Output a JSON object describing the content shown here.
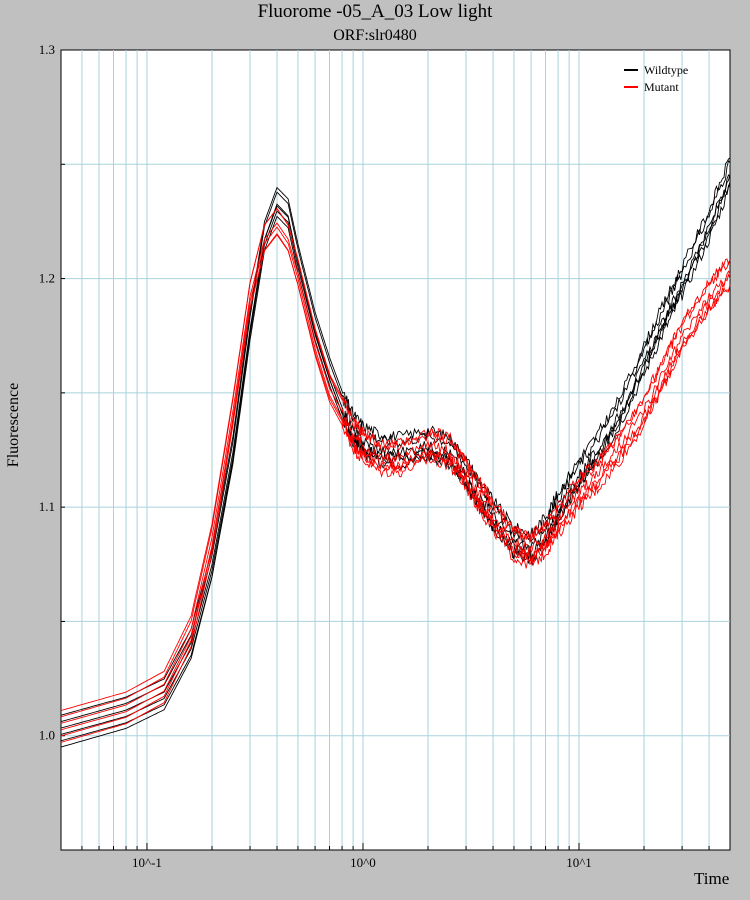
{
  "chart_data": {
    "type": "line",
    "title": "Fluorome -05_A_03 Low light",
    "subtitle": "ORF:slr0480",
    "xlabel": "Time",
    "ylabel": "Fluorescence",
    "x_scale": "log",
    "xlim": [
      0.04,
      50
    ],
    "ylim": [
      0.95,
      1.3
    ],
    "y_ticks": [
      1.0,
      1.1,
      1.2,
      1.3
    ],
    "y_tick_labels": [
      "1.0",
      "1.1",
      "1.2",
      "1.3"
    ],
    "x_tick_values": [
      0.1,
      1,
      10
    ],
    "x_tick_labels": [
      "10^-1",
      "10^0",
      "10^1"
    ],
    "grid": true,
    "legend_position": "top-right",
    "series": [
      {
        "name": "Wildtype",
        "color": "#000000",
        "replicates": 6,
        "x": [
          0.04,
          0.08,
          0.12,
          0.16,
          0.2,
          0.25,
          0.3,
          0.35,
          0.4,
          0.45,
          0.5,
          0.6,
          0.7,
          0.8,
          0.9,
          1.0,
          1.2,
          1.5,
          2.0,
          2.5,
          3.0,
          3.5,
          4.0,
          5.0,
          6.0,
          7.0,
          8.0,
          10.0,
          12.0,
          15.0,
          20.0,
          25.0,
          30.0,
          40.0,
          50.0
        ],
        "y": [
          1.002,
          1.01,
          1.018,
          1.04,
          1.075,
          1.125,
          1.18,
          1.22,
          1.235,
          1.23,
          1.21,
          1.18,
          1.16,
          1.145,
          1.135,
          1.13,
          1.126,
          1.125,
          1.128,
          1.125,
          1.115,
          1.105,
          1.097,
          1.085,
          1.082,
          1.09,
          1.1,
          1.115,
          1.125,
          1.14,
          1.165,
          1.185,
          1.2,
          1.225,
          1.248
        ]
      },
      {
        "name": "Mutant",
        "color": "#ff0000",
        "replicates": 6,
        "x": [
          0.04,
          0.08,
          0.12,
          0.16,
          0.2,
          0.25,
          0.3,
          0.35,
          0.4,
          0.45,
          0.5,
          0.6,
          0.7,
          0.8,
          0.9,
          1.0,
          1.2,
          1.5,
          2.0,
          2.5,
          3.0,
          3.5,
          4.0,
          5.0,
          6.0,
          7.0,
          8.0,
          10.0,
          12.0,
          15.0,
          20.0,
          25.0,
          30.0,
          40.0,
          50.0
        ],
        "y": [
          1.004,
          1.012,
          1.021,
          1.045,
          1.085,
          1.14,
          1.19,
          1.215,
          1.222,
          1.215,
          1.2,
          1.17,
          1.15,
          1.14,
          1.13,
          1.125,
          1.12,
          1.12,
          1.125,
          1.123,
          1.113,
          1.103,
          1.095,
          1.083,
          1.08,
          1.085,
          1.093,
          1.105,
          1.112,
          1.123,
          1.14,
          1.158,
          1.172,
          1.19,
          1.2
        ]
      }
    ]
  }
}
